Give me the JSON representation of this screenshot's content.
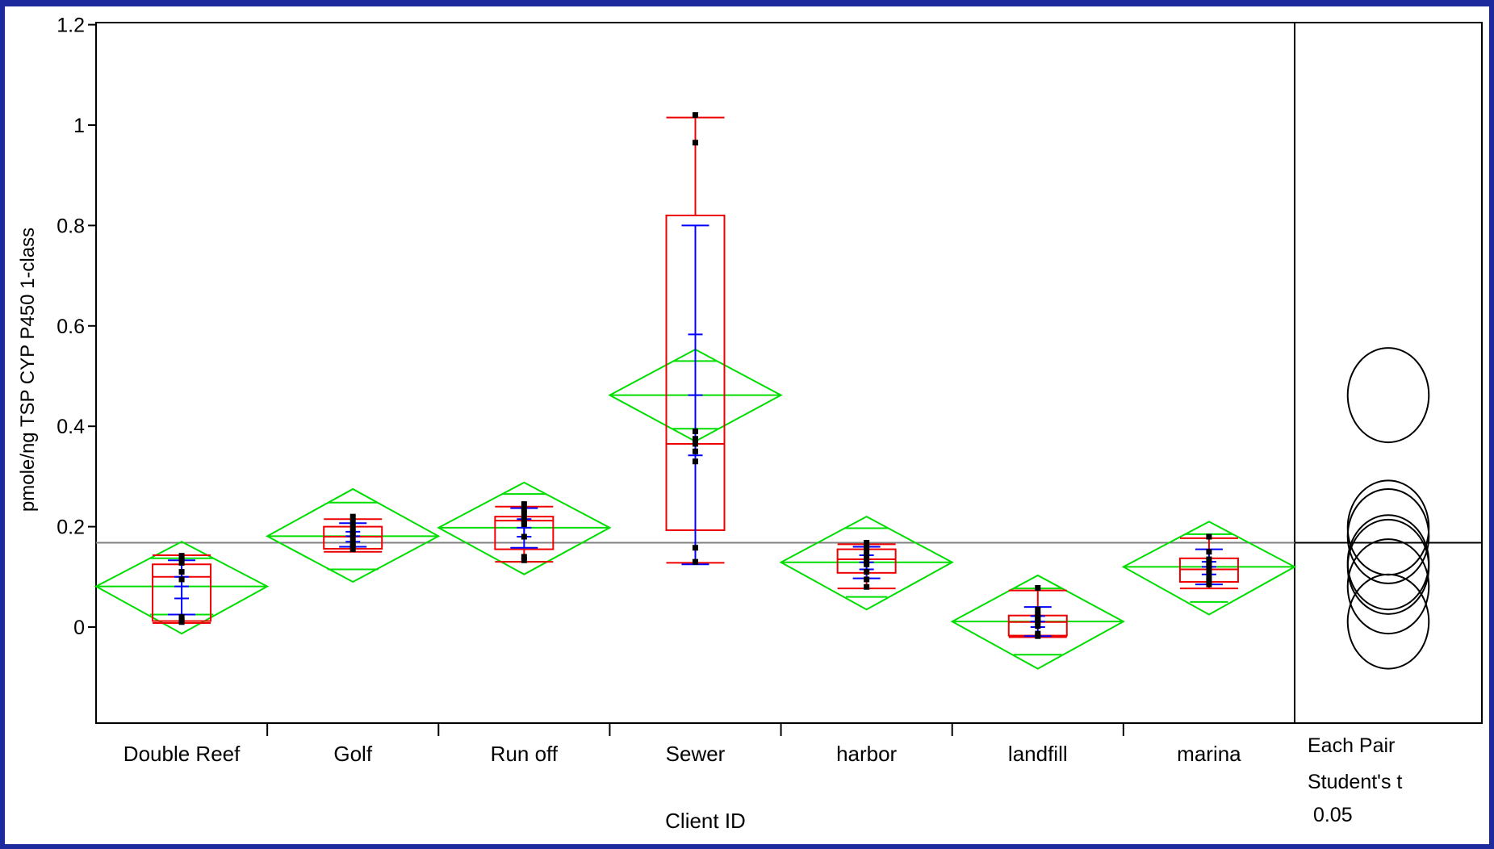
{
  "chart_data": {
    "type": "box",
    "title": "",
    "xlabel": "Client ID",
    "ylabel": "pmole/ng TSP CYP P450 1-class",
    "ylim": [
      -0.19,
      1.21
    ],
    "yticks": [
      0,
      0.2,
      0.4,
      0.6,
      0.8,
      1,
      1.2
    ],
    "ytick_labels": [
      "0",
      "0.2",
      "0.4",
      "0.6",
      "0.8",
      "1",
      "1.2"
    ],
    "grand_mean": 0.168,
    "categories": [
      "Double Reef",
      "Golf",
      "Run off",
      "Sewer",
      "harbor",
      "landfill",
      "marina"
    ],
    "groups": [
      {
        "name": "Double Reef",
        "mean": 0.081,
        "ci": [
          -0.013,
          0.17
        ],
        "overlap": [
          0.025,
          0.137
        ],
        "box": {
          "whisker_low": 0.008,
          "q1": 0.012,
          "median": 0.1,
          "q3": 0.125,
          "whisker_high": 0.143
        },
        "sd_bar": [
          0.025,
          0.133
        ],
        "mean_err": [
          0.057,
          0.1
        ],
        "points": [
          0.142,
          0.135,
          0.128,
          0.11,
          0.095,
          0.02,
          0.015,
          0.012,
          0.01
        ]
      },
      {
        "name": "Golf",
        "mean": 0.181,
        "ci": [
          0.09,
          0.275
        ],
        "overlap": [
          0.115,
          0.248
        ],
        "box": {
          "whisker_low": 0.15,
          "q1": 0.156,
          "median": 0.18,
          "q3": 0.2,
          "whisker_high": 0.215
        },
        "sd_bar": [
          0.16,
          0.207
        ],
        "mean_err": [
          0.17,
          0.19
        ],
        "points": [
          0.22,
          0.21,
          0.2,
          0.19,
          0.185,
          0.175,
          0.165,
          0.16,
          0.155
        ]
      },
      {
        "name": "Run off",
        "mean": 0.198,
        "ci": [
          0.105,
          0.288
        ],
        "overlap": [
          0.13,
          0.265
        ],
        "box": {
          "whisker_low": 0.13,
          "q1": 0.155,
          "median": 0.212,
          "q3": 0.22,
          "whisker_high": 0.24
        },
        "sd_bar": [
          0.158,
          0.237
        ],
        "mean_err": [
          0.18,
          0.215
        ],
        "points": [
          0.245,
          0.235,
          0.225,
          0.215,
          0.21,
          0.205,
          0.18,
          0.14,
          0.133
        ]
      },
      {
        "name": "Sewer",
        "mean": 0.462,
        "ci": [
          0.37,
          0.553
        ],
        "overlap": [
          0.395,
          0.53
        ],
        "box": {
          "whisker_low": 0.128,
          "q1": 0.193,
          "median": 0.365,
          "q3": 0.82,
          "whisker_high": 1.015
        },
        "sd_bar": [
          0.125,
          0.8
        ],
        "mean_err": [
          0.342,
          0.583
        ],
        "points": [
          1.02,
          0.965,
          0.39,
          0.375,
          0.365,
          0.35,
          0.33,
          0.158,
          0.13
        ]
      },
      {
        "name": "harbor",
        "mean": 0.129,
        "ci": [
          0.035,
          0.22
        ],
        "overlap": [
          0.06,
          0.197
        ],
        "box": {
          "whisker_low": 0.077,
          "q1": 0.108,
          "median": 0.135,
          "q3": 0.155,
          "whisker_high": 0.165
        },
        "sd_bar": [
          0.097,
          0.16
        ],
        "mean_err": [
          0.115,
          0.143
        ],
        "points": [
          0.168,
          0.16,
          0.15,
          0.14,
          0.13,
          0.125,
          0.11,
          0.095,
          0.08
        ]
      },
      {
        "name": "landfill",
        "mean": 0.011,
        "ci": [
          -0.083,
          0.103
        ],
        "overlap": [
          -0.055,
          0.077
        ],
        "box": {
          "whisker_low": -0.02,
          "q1": -0.017,
          "median": 0.01,
          "q3": 0.023,
          "whisker_high": 0.073
        },
        "sd_bar": [
          -0.018,
          0.04
        ],
        "mean_err": [
          0,
          0.022
        ],
        "points": [
          0.078,
          0.035,
          0.025,
          0.02,
          0.015,
          0.01,
          0.002,
          -0.013,
          -0.018
        ]
      },
      {
        "name": "marina",
        "mean": 0.12,
        "ci": [
          0.025,
          0.21
        ],
        "overlap": [
          0.05,
          0.185
        ],
        "box": {
          "whisker_low": 0.077,
          "q1": 0.09,
          "median": 0.115,
          "q3": 0.137,
          "whisker_high": 0.177
        },
        "sd_bar": [
          0.085,
          0.155
        ],
        "mean_err": [
          0.105,
          0.13
        ],
        "points": [
          0.18,
          0.15,
          0.135,
          0.125,
          0.12,
          0.11,
          0.1,
          0.09,
          0.085
        ]
      }
    ],
    "comparison_circles": {
      "label_lines": [
        "Each Pair",
        "Student's t",
        " 0.05"
      ],
      "circles": [
        {
          "group": "Double Reef",
          "center": 0.081,
          "radius": 0.094
        },
        {
          "group": "Golf",
          "center": 0.181,
          "radius": 0.094
        },
        {
          "group": "Run off",
          "center": 0.198,
          "radius": 0.094
        },
        {
          "group": "Sewer",
          "center": 0.462,
          "radius": 0.094
        },
        {
          "group": "harbor",
          "center": 0.129,
          "radius": 0.094
        },
        {
          "group": "landfill",
          "center": 0.011,
          "radius": 0.094
        },
        {
          "group": "marina",
          "center": 0.12,
          "radius": 0.094
        }
      ]
    },
    "colors": {
      "frame": "#1c2a9e",
      "diamond": "#00dd00",
      "box": "#ee0000",
      "error_bar": "#0000ff",
      "points": "#000000",
      "grand_mean_line": "#808080",
      "axis": "#000000"
    }
  }
}
